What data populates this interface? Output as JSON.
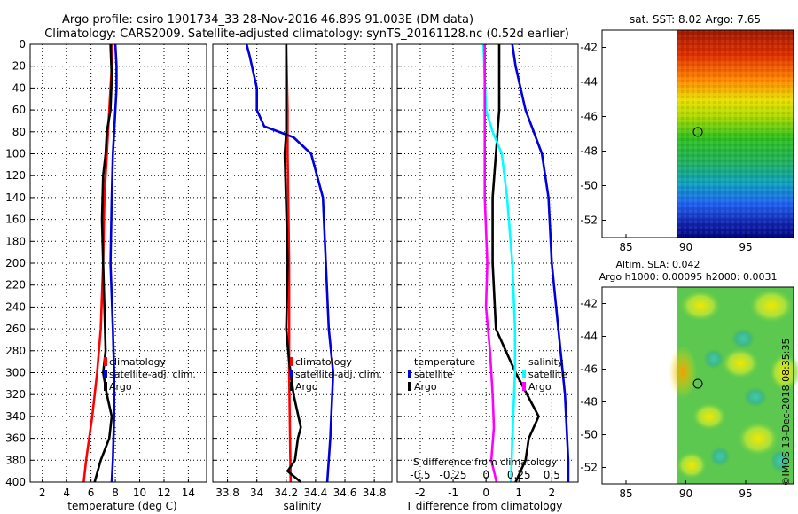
{
  "header": {
    "title_line1": "Argo profile: csiro 1901734_33 28-Nov-2016 46.89S 91.003E (DM data)",
    "title_line2": "Climatology: CARS2009. Satellite-adjusted climatology: synTS_20161128.nc (0.52d earlier)"
  },
  "colors": {
    "climatology": "#ff0000",
    "satellite": "#0000dd",
    "argo": "#000000",
    "temperature_diff": "#00ffff",
    "salinity_diff": "#ff00ff"
  },
  "chart_data": [
    {
      "id": "temperature",
      "type": "line",
      "xlabel": "temperature (deg C)",
      "ylabel": "",
      "xlim": [
        1,
        15.5
      ],
      "ylim": [
        400,
        0
      ],
      "xticks": [
        2,
        4,
        6,
        8,
        10,
        12,
        14
      ],
      "yticks": [
        0,
        20,
        40,
        60,
        80,
        100,
        120,
        140,
        160,
        180,
        200,
        220,
        240,
        260,
        280,
        300,
        320,
        340,
        360,
        380,
        400
      ],
      "grid": true,
      "legend": [
        "climatology",
        "satellite-adj. clim.",
        "Argo"
      ],
      "legend_position": "right",
      "series": [
        {
          "name": "climatology",
          "color": "#ff0000",
          "depth": [
            0,
            20,
            40,
            60,
            80,
            100,
            140,
            200,
            260,
            300,
            340,
            380,
            400
          ],
          "values": [
            7.7,
            7.7,
            7.6,
            7.5,
            7.4,
            7.3,
            7.1,
            7.0,
            6.8,
            6.5,
            6.1,
            5.6,
            5.4
          ]
        },
        {
          "name": "satellite-adj. clim.",
          "color": "#0000dd",
          "depth": [
            0,
            20,
            40,
            60,
            80,
            100,
            140,
            200,
            260,
            300,
            340,
            380,
            400
          ],
          "values": [
            8.0,
            8.1,
            8.1,
            8.0,
            7.9,
            7.8,
            7.7,
            7.6,
            7.8,
            7.9,
            7.9,
            7.8,
            7.7
          ]
        },
        {
          "name": "Argo",
          "color": "#000000",
          "depth": [
            0,
            30,
            60,
            80,
            100,
            120,
            160,
            200,
            240,
            280,
            300,
            320,
            340,
            360,
            380,
            400
          ],
          "values": [
            7.6,
            7.7,
            7.6,
            7.3,
            7.2,
            7.0,
            6.9,
            7.0,
            7.1,
            7.2,
            7.0,
            7.3,
            7.7,
            7.5,
            6.8,
            6.3
          ]
        }
      ]
    },
    {
      "id": "salinity",
      "type": "line",
      "xlabel": "salinity",
      "ylabel": "",
      "xlim": [
        33.7,
        34.92
      ],
      "ylim": [
        400,
        0
      ],
      "xticks": [
        33.8,
        34,
        34.2,
        34.4,
        34.6,
        34.8
      ],
      "xtick_labels": [
        "33.8",
        "34",
        "34.2",
        "34.4",
        "34.6",
        "34.8"
      ],
      "grid": true,
      "legend": [
        "climatology",
        "satellite-adj. clim.",
        "Argo"
      ],
      "legend_position": "right",
      "series": [
        {
          "name": "climatology",
          "color": "#ff0000",
          "depth": [
            0,
            60,
            100,
            200,
            300,
            400
          ],
          "values": [
            34.2,
            34.21,
            34.21,
            34.22,
            34.22,
            34.23
          ]
        },
        {
          "name": "satellite-adj. clim.",
          "color": "#0000dd",
          "depth": [
            0,
            10,
            40,
            60,
            75,
            85,
            100,
            140,
            200,
            260,
            300,
            360,
            400
          ],
          "values": [
            33.93,
            33.95,
            34.0,
            34.0,
            34.05,
            34.25,
            34.37,
            34.45,
            34.47,
            34.49,
            34.52,
            34.5,
            34.48
          ]
        },
        {
          "name": "Argo",
          "color": "#000000",
          "depth": [
            0,
            60,
            80,
            100,
            150,
            200,
            260,
            290,
            320,
            350,
            360,
            380,
            390,
            400
          ],
          "values": [
            34.2,
            34.2,
            34.2,
            34.19,
            34.2,
            34.21,
            34.2,
            34.22,
            34.25,
            34.3,
            34.28,
            34.26,
            34.21,
            34.3
          ]
        }
      ]
    },
    {
      "id": "difference",
      "type": "line",
      "xlabel": "T difference from climatology",
      "top_axis_label": "S difference from climatology",
      "xlim": [
        -2.7,
        2.8
      ],
      "ylim": [
        400,
        0
      ],
      "xticks": [
        -2,
        -1,
        0,
        1,
        2
      ],
      "top_xticks": [
        -0.5,
        -0.25,
        0,
        0.25,
        0.5
      ],
      "top_xtick_labels": [
        "-0.5",
        "-0.25",
        "0",
        "0.25",
        "0.5"
      ],
      "grid": true,
      "legend_groups": [
        {
          "title": "temperature",
          "entries": [
            "satellite",
            "Argo"
          ]
        },
        {
          "title": "salinity",
          "entries": [
            "satellite",
            "Argo"
          ]
        }
      ],
      "legend_position": "right",
      "series": [
        {
          "name": "temperature satellite",
          "color": "#0000dd",
          "depth": [
            0,
            20,
            60,
            100,
            140,
            200,
            260,
            320,
            380,
            400
          ],
          "values": [
            0.8,
            0.9,
            1.2,
            1.7,
            1.9,
            2.0,
            2.2,
            2.4,
            2.5,
            2.5
          ]
        },
        {
          "name": "temperature Argo",
          "color": "#000000",
          "depth": [
            0,
            60,
            100,
            140,
            200,
            260,
            300,
            340,
            360,
            380,
            400
          ],
          "values": [
            0.4,
            0.4,
            0.3,
            0.2,
            0.2,
            0.3,
            0.9,
            1.6,
            1.3,
            1.2,
            0.9
          ]
        },
        {
          "name": "salinity satellite",
          "color": "#00ffff",
          "depth": [
            0,
            60,
            80,
            100,
            140,
            200,
            260,
            300,
            360,
            400
          ],
          "values": [
            -0.02,
            0.0,
            0.05,
            0.12,
            0.16,
            0.2,
            0.22,
            0.22,
            0.2,
            0.19
          ]
        },
        {
          "name": "salinity Argo",
          "color": "#ff00ff",
          "depth": [
            0,
            60,
            100,
            140,
            200,
            240,
            280,
            320,
            350,
            380,
            400
          ],
          "values": [
            -0.01,
            -0.01,
            -0.01,
            -0.01,
            0.01,
            0.0,
            0.03,
            0.05,
            0.06,
            0.04,
            0.08
          ]
        }
      ]
    },
    {
      "id": "sst_map",
      "type": "heatmap",
      "title": "sat. SST: 8.02 Argo: 7.65",
      "xlim": [
        83,
        99
      ],
      "ylim": [
        -53,
        -41
      ],
      "xticks": [
        85,
        90,
        95
      ],
      "yticks": [
        -42,
        -44,
        -46,
        -48,
        -50,
        -52
      ],
      "argo_position": {
        "lon": 91.003,
        "lat": -46.89
      }
    },
    {
      "id": "sla_map",
      "type": "heatmap",
      "title_line1": "Altim. SLA: 0.042",
      "title_line2": "Argo h1000: 0.00095 h2000: 0.0031",
      "xlim": [
        83,
        99
      ],
      "ylim": [
        -53,
        -41
      ],
      "xticks": [
        85,
        90,
        95
      ],
      "yticks": [
        -42,
        -44,
        -46,
        -48,
        -50,
        -52
      ],
      "argo_position": {
        "lon": 91.003,
        "lat": -46.89
      }
    }
  ],
  "footer": {
    "credit": "©IMOS 13-Dec-2018 08:35:35"
  }
}
